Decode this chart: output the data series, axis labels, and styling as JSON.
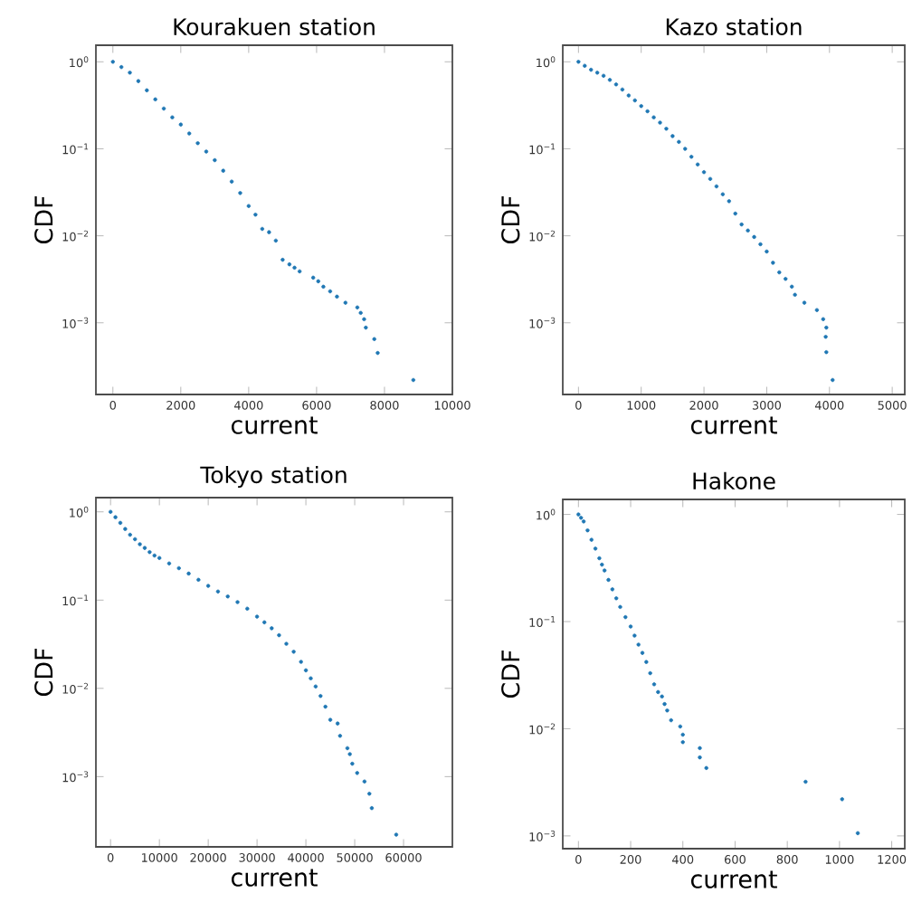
{
  "chart_data": [
    {
      "type": "scatter",
      "title": "Kourakuen station",
      "xlabel": "current",
      "ylabel": "CDF",
      "log": "y",
      "color": "#1f77b4",
      "xlim": [
        -500,
        10000
      ],
      "ylim": [
        0.00015,
        1.55
      ],
      "xticks": [
        0,
        2000,
        4000,
        6000,
        8000,
        10000
      ],
      "yticks": [
        {
          "value": 1,
          "label": "10$^{0}$"
        },
        {
          "value": 0.1,
          "label": "10$^{−1}$"
        },
        {
          "value": 0.01,
          "label": "10$^{−2}$"
        },
        {
          "value": 0.001,
          "label": "10$^{−3}$"
        }
      ],
      "x": [
        0,
        250,
        500,
        750,
        1000,
        1250,
        1500,
        1750,
        2000,
        2250,
        2500,
        2750,
        3000,
        3250,
        3500,
        3750,
        4000,
        4200,
        4400,
        4600,
        4800,
        5000,
        5200,
        5350,
        5500,
        5900,
        6050,
        6200,
        6400,
        6600,
        6850,
        7200,
        7300,
        7400,
        7450,
        7700,
        7800,
        8850
      ],
      "values": [
        1,
        0.87,
        0.75,
        0.6,
        0.47,
        0.37,
        0.29,
        0.23,
        0.19,
        0.15,
        0.116,
        0.093,
        0.074,
        0.056,
        0.042,
        0.031,
        0.022,
        0.0175,
        0.012,
        0.011,
        0.0088,
        0.0053,
        0.0047,
        0.0043,
        0.0039,
        0.0033,
        0.003,
        0.0026,
        0.0023,
        0.002,
        0.0017,
        0.0015,
        0.0013,
        0.0011,
        0.00088,
        0.00065,
        0.00045,
        0.00022
      ]
    },
    {
      "type": "scatter",
      "title": "Kazo station",
      "xlabel": "current",
      "ylabel": "CDF",
      "log": "y",
      "color": "#1f77b4",
      "xlim": [
        -250,
        5200
      ],
      "ylim": [
        0.00015,
        1.55
      ],
      "xticks": [
        0,
        1000,
        2000,
        3000,
        4000,
        5000
      ],
      "yticks": [
        {
          "value": 1,
          "label": "10$^{0}$"
        },
        {
          "value": 0.1,
          "label": "10$^{−1}$"
        },
        {
          "value": 0.01,
          "label": "10$^{−2}$"
        },
        {
          "value": 0.001,
          "label": "10$^{−3}$"
        }
      ],
      "x": [
        0,
        100,
        200,
        300,
        400,
        500,
        600,
        700,
        800,
        900,
        1000,
        1100,
        1200,
        1300,
        1400,
        1500,
        1600,
        1700,
        1800,
        1900,
        2000,
        2100,
        2200,
        2300,
        2400,
        2500,
        2600,
        2700,
        2800,
        2900,
        3000,
        3100,
        3200,
        3300,
        3400,
        3450,
        3600,
        3800,
        3900,
        3950,
        3940,
        3950,
        4050
      ],
      "values": [
        1,
        0.9,
        0.81,
        0.75,
        0.69,
        0.62,
        0.55,
        0.48,
        0.41,
        0.36,
        0.31,
        0.27,
        0.23,
        0.2,
        0.17,
        0.14,
        0.12,
        0.1,
        0.081,
        0.066,
        0.054,
        0.045,
        0.037,
        0.03,
        0.025,
        0.018,
        0.0135,
        0.0115,
        0.0097,
        0.008,
        0.0066,
        0.0049,
        0.0038,
        0.0032,
        0.0026,
        0.0021,
        0.0017,
        0.0014,
        0.0011,
        0.00088,
        0.00069,
        0.00046,
        0.00022
      ]
    },
    {
      "type": "scatter",
      "title": "Tokyo station",
      "xlabel": "current",
      "ylabel": "CDF",
      "log": "y",
      "color": "#1f77b4",
      "xlim": [
        -3000,
        70000
      ],
      "ylim": [
        0.00016,
        1.45
      ],
      "xticks": [
        0,
        10000,
        20000,
        30000,
        40000,
        50000,
        60000
      ],
      "yticks": [
        {
          "value": 1,
          "label": "10$^{0}$"
        },
        {
          "value": 0.1,
          "label": "10$^{−1}$"
        },
        {
          "value": 0.01,
          "label": "10$^{−2}$"
        },
        {
          "value": 0.001,
          "label": "10$^{−3}$"
        }
      ],
      "x": [
        0,
        1000,
        2000,
        3000,
        4000,
        5000,
        6000,
        7000,
        8000,
        9000,
        10000,
        12000,
        14000,
        16000,
        18000,
        20000,
        22000,
        24000,
        26000,
        28000,
        30000,
        31500,
        33000,
        34500,
        36000,
        37500,
        39000,
        40000,
        41000,
        42000,
        43000,
        44000,
        45000,
        46500,
        47000,
        48500,
        49000,
        49500,
        50500,
        52000,
        53000,
        53500,
        58500
      ],
      "values": [
        1,
        0.87,
        0.75,
        0.64,
        0.55,
        0.49,
        0.43,
        0.39,
        0.35,
        0.32,
        0.3,
        0.26,
        0.23,
        0.2,
        0.17,
        0.145,
        0.125,
        0.11,
        0.095,
        0.08,
        0.065,
        0.056,
        0.048,
        0.04,
        0.032,
        0.026,
        0.02,
        0.016,
        0.013,
        0.0105,
        0.0082,
        0.0062,
        0.0044,
        0.004,
        0.0029,
        0.0021,
        0.0018,
        0.0014,
        0.0011,
        0.00088,
        0.00064,
        0.00044,
        0.00022
      ]
    },
    {
      "type": "scatter",
      "title": "Hakone",
      "xlabel": "current",
      "ylabel": "CDF",
      "log": "y",
      "color": "#1f77b4",
      "xlim": [
        -60,
        1250
      ],
      "ylim": [
        0.00076,
        1.38
      ],
      "xticks": [
        0,
        200,
        400,
        600,
        800,
        1000,
        1200
      ],
      "yticks": [
        {
          "value": 1,
          "label": "10$^{0}$"
        },
        {
          "value": 0.1,
          "label": "10$^{−1}$"
        },
        {
          "value": 0.01,
          "label": "10$^{−2}$"
        },
        {
          "value": 0.001,
          "label": "10$^{−3}$"
        }
      ],
      "x": [
        0,
        10,
        20,
        35,
        50,
        65,
        80,
        90,
        100,
        115,
        130,
        145,
        160,
        180,
        200,
        215,
        230,
        245,
        260,
        275,
        290,
        305,
        320,
        330,
        340,
        355,
        390,
        400,
        400,
        465,
        465,
        490,
        870,
        1010,
        1070
      ],
      "values": [
        1,
        0.93,
        0.86,
        0.71,
        0.58,
        0.48,
        0.39,
        0.34,
        0.3,
        0.245,
        0.2,
        0.165,
        0.137,
        0.11,
        0.09,
        0.074,
        0.061,
        0.051,
        0.042,
        0.033,
        0.026,
        0.022,
        0.02,
        0.017,
        0.0148,
        0.012,
        0.0105,
        0.0088,
        0.0075,
        0.0066,
        0.0054,
        0.0043,
        0.0032,
        0.0022,
        0.00106
      ]
    }
  ]
}
